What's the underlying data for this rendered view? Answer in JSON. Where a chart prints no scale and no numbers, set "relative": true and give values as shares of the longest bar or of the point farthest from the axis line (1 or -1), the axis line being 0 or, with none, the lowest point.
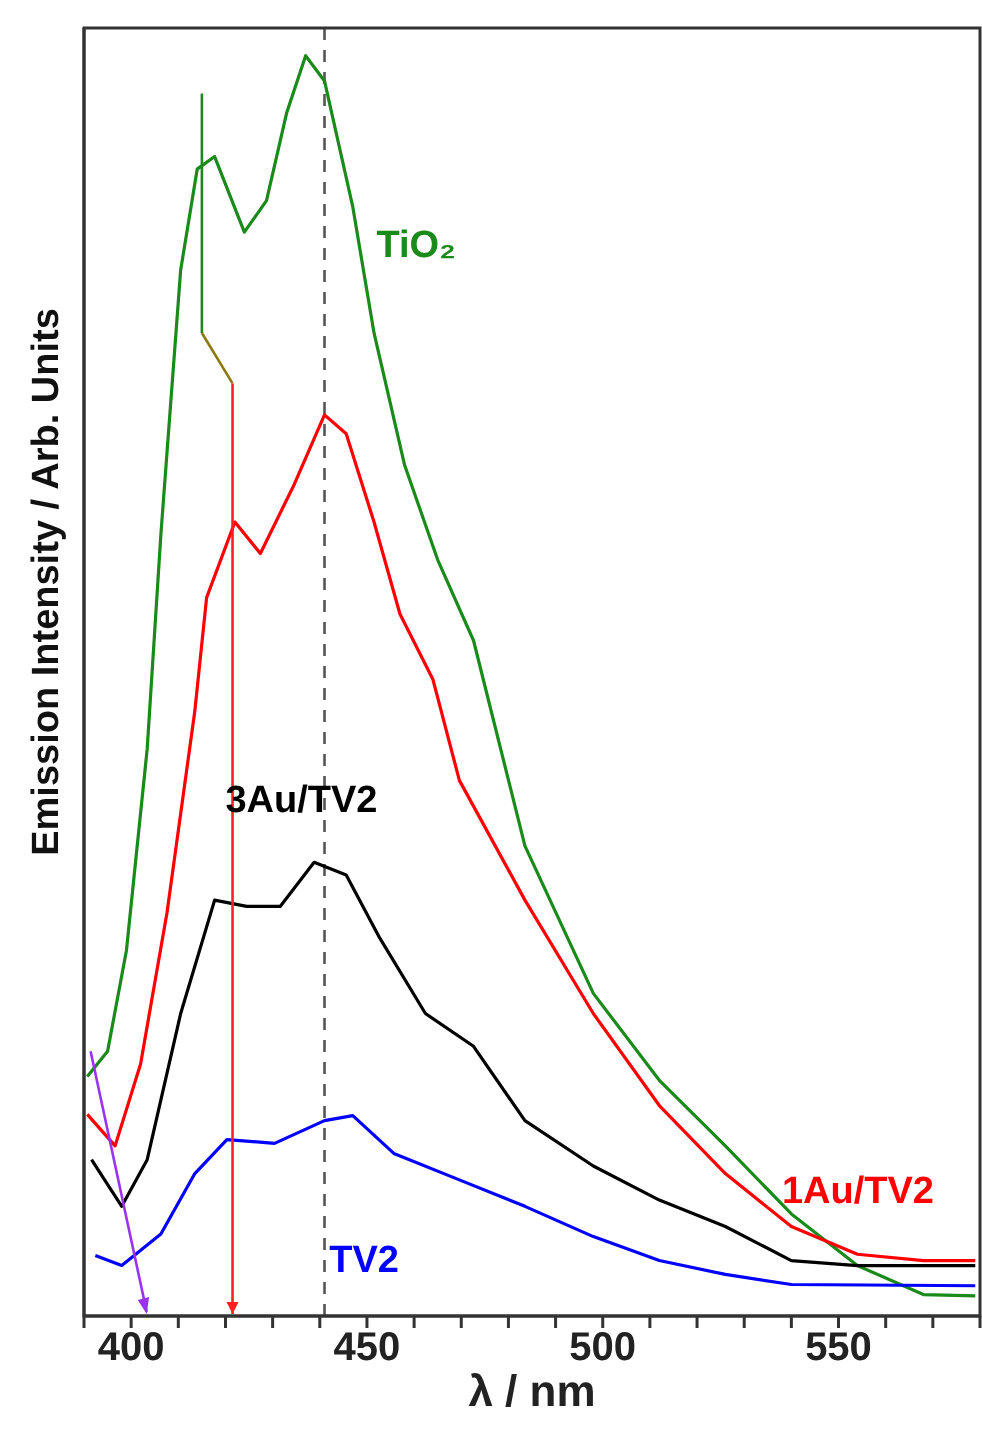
{
  "chart_data": {
    "type": "line",
    "relative": true,
    "xlabel": "λ / nm",
    "ylabel": "Emission Intensity / Arb. Units",
    "xlim": [
      390,
      580
    ],
    "xticks": [
      {
        "value": 390,
        "label": null
      },
      400,
      {
        "value": 410,
        "label": null
      },
      {
        "value": 420,
        "label": null
      },
      {
        "value": 430,
        "label": null
      },
      {
        "value": 440,
        "label": null
      },
      450,
      {
        "value": 460,
        "label": null
      },
      {
        "value": 470,
        "label": null
      },
      {
        "value": 480,
        "label": null
      },
      {
        "value": 490,
        "label": null
      },
      500,
      {
        "value": 510,
        "label": null
      },
      {
        "value": 520,
        "label": null
      },
      {
        "value": 530,
        "label": null
      },
      {
        "value": 540,
        "label": null
      },
      550,
      {
        "value": 560,
        "label": null
      },
      {
        "value": 570,
        "label": null
      },
      {
        "value": 580,
        "label": null
      }
    ],
    "tick_labels": "x",
    "grid": false,
    "legend": false,
    "ref_lines": [
      {
        "axis": "x",
        "value": 441,
        "line_style": "dashed",
        "color": "#555555"
      }
    ],
    "series": [
      {
        "name": "TiO₂",
        "color": "#1a8a1a",
        "x": [
          390.7,
          395,
          399,
          403.4,
          406.3,
          410.5,
          414,
          417.7,
          424,
          428.7,
          433,
          437,
          441,
          447,
          451.5,
          458,
          465,
          472.6,
          483.5,
          498,
          512,
          526,
          540,
          554,
          568,
          579
        ],
        "values": [
          0.19,
          0.21,
          0.29,
          0.45,
          0.62,
          0.83,
          0.91,
          0.92,
          0.86,
          0.885,
          0.955,
          1.0,
          0.98,
          0.88,
          0.78,
          0.675,
          0.6,
          0.536,
          0.373,
          0.256,
          0.187,
          0.135,
          0.081,
          0.04,
          0.017,
          0.016
        ]
      },
      {
        "name": "1Au/TV2",
        "color": "#ff0000",
        "x": [
          390.7,
          396.6,
          402,
          407.6,
          413.5,
          416,
          422,
          427.4,
          434.6,
          441,
          445.6,
          451.5,
          457,
          464,
          469.6,
          483.5,
          498,
          512,
          526,
          540,
          554,
          568,
          579
        ],
        "values": [
          0.16,
          0.135,
          0.2,
          0.32,
          0.48,
          0.57,
          0.63,
          0.605,
          0.66,
          0.715,
          0.7,
          0.63,
          0.557,
          0.505,
          0.425,
          0.33,
          0.24,
          0.167,
          0.113,
          0.071,
          0.049,
          0.044,
          0.044
        ]
      },
      {
        "name": "3Au/TV2",
        "color": "#000000",
        "x": [
          391.6,
          398,
          403.4,
          410.5,
          417.7,
          424.5,
          431.6,
          438.8,
          445.6,
          452.7,
          462.4,
          472.6,
          483.5,
          498,
          512,
          526,
          540,
          554,
          579
        ],
        "values": [
          0.124,
          0.087,
          0.124,
          0.24,
          0.33,
          0.325,
          0.325,
          0.36,
          0.35,
          0.3,
          0.24,
          0.214,
          0.155,
          0.119,
          0.092,
          0.071,
          0.044,
          0.04,
          0.04
        ]
      },
      {
        "name": "TV2",
        "color": "#0000ff",
        "x": [
          392.4,
          398,
          406.3,
          413.5,
          420.3,
          430.4,
          441,
          447,
          455.7,
          469.6,
          483.5,
          498,
          512,
          526,
          540,
          579
        ],
        "values": [
          0.048,
          0.04,
          0.065,
          0.113,
          0.14,
          0.137,
          0.155,
          0.159,
          0.129,
          0.108,
          0.087,
          0.063,
          0.044,
          0.033,
          0.025,
          0.024
        ]
      }
    ]
  }
}
